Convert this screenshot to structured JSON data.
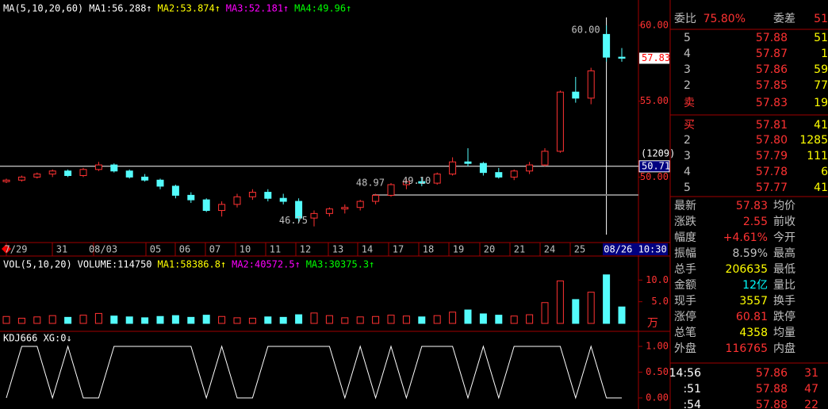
{
  "price_panel": {
    "header": [
      {
        "text": "MA(5,10,20,60)",
        "color": "#ffffff"
      },
      {
        "text": "MA1:56.288↑",
        "color": "#ffffff"
      },
      {
        "text": "MA2:53.874↑",
        "color": "#ffff00"
      },
      {
        "text": "MA3:52.181↑",
        "color": "#ff00ff"
      },
      {
        "text": "MA4:49.96↑",
        "color": "#00ff00"
      }
    ],
    "ylim": [
      46,
      61.3
    ],
    "yticks": [
      {
        "value": 60,
        "label": "60.00"
      },
      {
        "value": 55,
        "label": "55.00"
      },
      {
        "value": 50,
        "label": "50.00"
      }
    ],
    "last_price": {
      "value": 57.83,
      "label": "57.83"
    },
    "crosshair": {
      "count": "(1209)",
      "value": 50.71,
      "label": "50.71",
      "time": "08/26 10:30"
    },
    "annotations": [
      {
        "text": "60.00",
        "value": 60,
        "index": 39
      },
      {
        "text": "46.75",
        "value": 46.75,
        "index": 20
      },
      {
        "text": "48.97",
        "value": 48.97,
        "index": 25
      },
      {
        "text": "49.10",
        "value": 49.1,
        "index": 28
      }
    ],
    "dates": [
      "7/29",
      "31",
      "08/03",
      "05",
      "06",
      "07",
      "10",
      "11",
      "12",
      "13",
      "14",
      "17",
      "18",
      "19",
      "20",
      "21",
      "24",
      "25"
    ],
    "candles": [
      [
        49.7,
        49.9,
        49.6,
        49.8
      ],
      [
        49.8,
        50.1,
        49.7,
        50.0
      ],
      [
        50.0,
        50.3,
        49.9,
        50.2
      ],
      [
        50.2,
        50.5,
        50.0,
        50.4
      ],
      [
        50.4,
        50.5,
        50.0,
        50.1
      ],
      [
        50.1,
        50.6,
        50.0,
        50.5
      ],
      [
        50.5,
        51.0,
        50.4,
        50.8
      ],
      [
        50.8,
        50.9,
        50.3,
        50.4
      ],
      [
        50.4,
        50.5,
        49.9,
        50.0
      ],
      [
        50.0,
        50.2,
        49.7,
        49.8
      ],
      [
        49.8,
        49.9,
        49.2,
        49.4
      ],
      [
        49.4,
        49.5,
        48.6,
        48.8
      ],
      [
        48.8,
        49.0,
        48.3,
        48.5
      ],
      [
        48.5,
        48.6,
        47.7,
        47.8
      ],
      [
        47.8,
        48.4,
        47.4,
        48.2
      ],
      [
        48.2,
        48.9,
        48.0,
        48.7
      ],
      [
        48.7,
        49.2,
        48.5,
        49.0
      ],
      [
        49.0,
        49.2,
        48.4,
        48.6
      ],
      [
        48.6,
        48.9,
        48.2,
        48.4
      ],
      [
        48.4,
        48.6,
        47.0,
        47.3
      ],
      [
        47.3,
        47.8,
        46.75,
        47.6
      ],
      [
        47.6,
        48.0,
        47.4,
        47.9
      ],
      [
        47.9,
        48.2,
        47.6,
        48.0
      ],
      [
        48.0,
        48.5,
        47.8,
        48.4
      ],
      [
        48.4,
        48.9,
        48.2,
        48.8
      ],
      [
        48.8,
        49.6,
        48.7,
        49.5
      ],
      [
        49.5,
        49.9,
        49.2,
        49.7
      ],
      [
        49.7,
        50.0,
        49.4,
        49.6
      ],
      [
        49.6,
        50.3,
        49.5,
        50.2
      ],
      [
        50.2,
        51.3,
        50.1,
        51.0
      ],
      [
        51.0,
        51.9,
        50.7,
        50.9
      ],
      [
        50.9,
        51.0,
        50.1,
        50.3
      ],
      [
        50.3,
        50.6,
        49.9,
        50.0
      ],
      [
        50.0,
        50.5,
        49.8,
        50.4
      ],
      [
        50.4,
        51.0,
        50.2,
        50.8
      ],
      [
        50.8,
        51.9,
        50.7,
        51.7
      ],
      [
        51.7,
        55.7,
        51.6,
        55.6
      ],
      [
        55.6,
        56.6,
        54.9,
        55.2
      ],
      [
        55.2,
        57.2,
        54.8,
        57.0
      ],
      [
        59.4,
        60.0,
        57.6,
        57.9
      ],
      [
        57.9,
        58.5,
        57.6,
        57.83
      ]
    ]
  },
  "volume_panel": {
    "header": [
      {
        "text": "VOL(5,10,20)",
        "color": "#ffffff"
      },
      {
        "text": "VOLUME:114750",
        "color": "#ffffff"
      },
      {
        "text": "MA1:58386.8↑",
        "color": "#ffff00"
      },
      {
        "text": "MA2:40572.5↑",
        "color": "#ff00ff"
      },
      {
        "text": "MA3:30375.3↑",
        "color": "#00ff00"
      }
    ],
    "unit": "万",
    "ylim": [
      0,
      12.8
    ],
    "yticks": [
      {
        "value": 10,
        "label": "10.0"
      },
      {
        "value": 5,
        "label": "5.0"
      }
    ],
    "values": [
      1.6,
      1.2,
      1.5,
      1.8,
      1.4,
      1.9,
      2.3,
      1.7,
      1.5,
      1.3,
      1.6,
      1.8,
      1.4,
      1.9,
      1.6,
      1.3,
      1.2,
      1.5,
      1.4,
      2.0,
      2.4,
      1.8,
      1.3,
      1.5,
      1.6,
      1.9,
      1.7,
      1.5,
      1.8,
      2.6,
      3.1,
      2.2,
      1.9,
      1.7,
      2.0,
      4.8,
      9.8,
      5.5,
      7.2,
      11.2,
      3.8
    ]
  },
  "kdj_panel": {
    "header": "KDJ666 XG:0↓",
    "ylim": [
      -0.05,
      1.05
    ],
    "yticks": [
      {
        "value": 1,
        "label": "1.00"
      },
      {
        "value": 0.5,
        "label": "0.50"
      },
      {
        "value": 0,
        "label": "0.00"
      }
    ],
    "xg": [
      0,
      1,
      1,
      0,
      1,
      0,
      0,
      1,
      1,
      1,
      1,
      1,
      1,
      0,
      1,
      0,
      0,
      1,
      1,
      1,
      1,
      1,
      0,
      1,
      0,
      1,
      0,
      1,
      1,
      1,
      0,
      1,
      0,
      1,
      1,
      1,
      1,
      0,
      1,
      0,
      0
    ]
  },
  "quote_panel": {
    "order_ratio": {
      "label": "委比",
      "value": "75.80%",
      "diff_label": "委差",
      "diff": "51"
    },
    "sells": [
      {
        "level": "5",
        "price": "57.88",
        "volume": "51"
      },
      {
        "level": "4",
        "price": "57.87",
        "volume": "1"
      },
      {
        "level": "3",
        "price": "57.86",
        "volume": "59"
      },
      {
        "level": "2",
        "price": "57.85",
        "volume": "77"
      },
      {
        "level": "卖",
        "price": "57.83",
        "volume": "19"
      }
    ],
    "buys": [
      {
        "level": "买",
        "price": "57.81",
        "volume": "41"
      },
      {
        "level": "2",
        "price": "57.80",
        "volume": "1285"
      },
      {
        "level": "3",
        "price": "57.79",
        "volume": "111"
      },
      {
        "level": "4",
        "price": "57.78",
        "volume": "6"
      },
      {
        "level": "5",
        "price": "57.77",
        "volume": "41"
      }
    ],
    "stats": [
      {
        "label": "最新",
        "value": "57.83",
        "color": "#ff3232",
        "label2": "均价"
      },
      {
        "label": "涨跌",
        "value": "2.55",
        "color": "#ff3232",
        "label2": "前收"
      },
      {
        "label": "幅度",
        "value": "+4.61%",
        "color": "#ff3232",
        "label2": "今开"
      },
      {
        "label": "振幅",
        "value": "8.59%",
        "color": "#c0c0c0",
        "label2": "最高"
      },
      {
        "label": "总手",
        "value": "206635",
        "color": "#ffff00",
        "label2": "最低"
      },
      {
        "label": "金额",
        "value": "12亿",
        "color": "#00ffff",
        "label2": "量比"
      },
      {
        "label": "现手",
        "value": "3557",
        "color": "#ffff00",
        "label2": "换手"
      },
      {
        "label": "涨停",
        "value": "60.81",
        "color": "#ff3232",
        "label2": "跌停"
      },
      {
        "label": "总笔",
        "value": "4358",
        "color": "#ffff00",
        "label2": "均量"
      },
      {
        "label": "外盘",
        "value": "116765",
        "color": "#ff3232",
        "label2": "内盘"
      }
    ],
    "ticks": [
      {
        "time": "14:56",
        "price": "57.86",
        "volume": "31"
      },
      {
        "time": ":51",
        "price": "57.88",
        "volume": "47"
      },
      {
        "time": ":54",
        "price": "57.88",
        "volume": "22"
      }
    ]
  }
}
